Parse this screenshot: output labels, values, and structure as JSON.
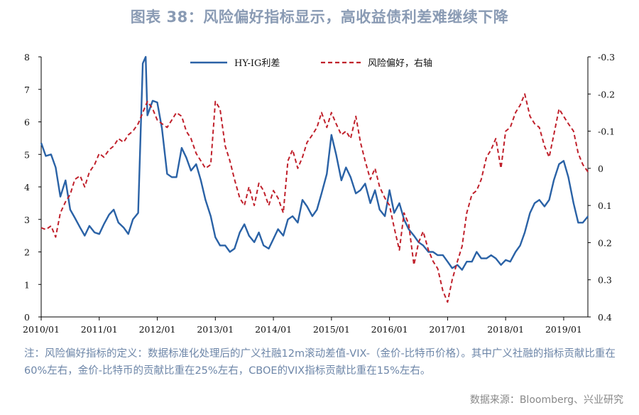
{
  "title": "图表 38：风险偏好指标显示，高收益债利差难继续下降",
  "note": "注：风险偏好指标的定义：数据标准化处理后的广义社融12m滚动差值-VIX-（金价-比特币价格）。其中广义社融的指标贡献比重在60%左右，金价-比特币的贡献比重在25%左右，CBOE的VIX指标贡献比重在15%左右。",
  "source": "数据来源：Bloomberg、兴业研究",
  "colors": {
    "hy_ig": "#2a62a6",
    "risk": "#c0202b"
  },
  "chart_data": {
    "type": "line",
    "x_ticks": [
      "2010/01",
      "2011/01",
      "2012/01",
      "2013/01",
      "2014/01",
      "2015/01",
      "2016/01",
      "2017/01",
      "2018/01",
      "2019/01"
    ],
    "xlim": [
      "2010/01",
      "2019/06"
    ],
    "left_axis": {
      "ylim": [
        0,
        8
      ],
      "ticks": [
        "0",
        "1",
        "2",
        "3",
        "4",
        "5",
        "6",
        "7",
        "8"
      ]
    },
    "right_axis": {
      "ylim": [
        0.4,
        -0.3
      ],
      "inverted": true,
      "ticks": [
        "-0.3",
        "-0.2",
        "-0.1",
        "0",
        "0.1",
        "0.2",
        "0.3",
        "0.4"
      ]
    },
    "grid": false,
    "legend_position": "top",
    "series": [
      {
        "name": "HY-IG利差",
        "axis": "left",
        "style": "solid",
        "points": [
          [
            2010.0,
            5.35
          ],
          [
            2010.08,
            4.95
          ],
          [
            2010.17,
            5.0
          ],
          [
            2010.25,
            4.6
          ],
          [
            2010.33,
            3.7
          ],
          [
            2010.42,
            4.2
          ],
          [
            2010.5,
            3.3
          ],
          [
            2010.58,
            3.05
          ],
          [
            2010.67,
            2.75
          ],
          [
            2010.75,
            2.5
          ],
          [
            2010.83,
            2.8
          ],
          [
            2010.92,
            2.6
          ],
          [
            2011.0,
            2.55
          ],
          [
            2011.08,
            2.85
          ],
          [
            2011.17,
            3.15
          ],
          [
            2011.25,
            3.3
          ],
          [
            2011.33,
            2.9
          ],
          [
            2011.42,
            2.75
          ],
          [
            2011.5,
            2.55
          ],
          [
            2011.58,
            3.0
          ],
          [
            2011.67,
            3.2
          ],
          [
            2011.75,
            7.8
          ],
          [
            2011.8,
            8.0
          ],
          [
            2011.83,
            6.2
          ],
          [
            2011.92,
            6.65
          ],
          [
            2012.0,
            6.6
          ],
          [
            2012.08,
            5.8
          ],
          [
            2012.17,
            4.4
          ],
          [
            2012.25,
            4.3
          ],
          [
            2012.33,
            4.3
          ],
          [
            2012.42,
            5.2
          ],
          [
            2012.5,
            4.9
          ],
          [
            2012.58,
            4.5
          ],
          [
            2012.67,
            4.7
          ],
          [
            2012.75,
            4.2
          ],
          [
            2012.83,
            3.6
          ],
          [
            2012.92,
            3.1
          ],
          [
            2013.0,
            2.45
          ],
          [
            2013.08,
            2.2
          ],
          [
            2013.17,
            2.2
          ],
          [
            2013.25,
            2.0
          ],
          [
            2013.33,
            2.1
          ],
          [
            2013.42,
            2.6
          ],
          [
            2013.5,
            2.85
          ],
          [
            2013.58,
            2.5
          ],
          [
            2013.67,
            2.3
          ],
          [
            2013.75,
            2.6
          ],
          [
            2013.83,
            2.2
          ],
          [
            2013.92,
            2.1
          ],
          [
            2014.0,
            2.4
          ],
          [
            2014.08,
            2.7
          ],
          [
            2014.17,
            2.5
          ],
          [
            2014.25,
            3.0
          ],
          [
            2014.33,
            3.1
          ],
          [
            2014.42,
            2.9
          ],
          [
            2014.5,
            3.6
          ],
          [
            2014.58,
            3.4
          ],
          [
            2014.67,
            3.1
          ],
          [
            2014.75,
            3.3
          ],
          [
            2014.83,
            3.8
          ],
          [
            2014.92,
            4.4
          ],
          [
            2015.0,
            5.6
          ],
          [
            2015.08,
            5.0
          ],
          [
            2015.17,
            4.2
          ],
          [
            2015.25,
            4.6
          ],
          [
            2015.33,
            4.3
          ],
          [
            2015.42,
            3.8
          ],
          [
            2015.5,
            3.9
          ],
          [
            2015.58,
            4.1
          ],
          [
            2015.67,
            3.5
          ],
          [
            2015.75,
            3.9
          ],
          [
            2015.83,
            3.3
          ],
          [
            2015.92,
            3.1
          ],
          [
            2016.0,
            3.9
          ],
          [
            2016.08,
            3.2
          ],
          [
            2016.17,
            3.5
          ],
          [
            2016.25,
            3.0
          ],
          [
            2016.33,
            2.7
          ],
          [
            2016.42,
            2.5
          ],
          [
            2016.5,
            2.3
          ],
          [
            2016.58,
            2.2
          ],
          [
            2016.67,
            2.0
          ],
          [
            2016.75,
            2.0
          ],
          [
            2016.83,
            1.9
          ],
          [
            2016.92,
            1.9
          ],
          [
            2017.0,
            1.7
          ],
          [
            2017.08,
            1.5
          ],
          [
            2017.17,
            1.6
          ],
          [
            2017.25,
            1.45
          ],
          [
            2017.33,
            1.7
          ],
          [
            2017.42,
            1.7
          ],
          [
            2017.5,
            2.0
          ],
          [
            2017.58,
            1.8
          ],
          [
            2017.67,
            1.8
          ],
          [
            2017.75,
            1.9
          ],
          [
            2017.83,
            1.8
          ],
          [
            2017.92,
            1.6
          ],
          [
            2018.0,
            1.75
          ],
          [
            2018.08,
            1.7
          ],
          [
            2018.17,
            2.0
          ],
          [
            2018.25,
            2.2
          ],
          [
            2018.33,
            2.6
          ],
          [
            2018.42,
            3.2
          ],
          [
            2018.5,
            3.5
          ],
          [
            2018.58,
            3.6
          ],
          [
            2018.67,
            3.4
          ],
          [
            2018.75,
            3.6
          ],
          [
            2018.83,
            4.2
          ],
          [
            2018.92,
            4.7
          ],
          [
            2019.0,
            4.8
          ],
          [
            2019.08,
            4.3
          ],
          [
            2019.17,
            3.5
          ],
          [
            2019.25,
            2.9
          ],
          [
            2019.33,
            2.9
          ],
          [
            2019.42,
            3.1
          ]
        ]
      },
      {
        "name": "风险偏好，右轴",
        "axis": "right",
        "style": "dashed",
        "points": [
          [
            2010.0,
            0.16
          ],
          [
            2010.08,
            0.165
          ],
          [
            2010.17,
            0.155
          ],
          [
            2010.25,
            0.185
          ],
          [
            2010.33,
            0.12
          ],
          [
            2010.42,
            0.09
          ],
          [
            2010.5,
            0.07
          ],
          [
            2010.58,
            0.03
          ],
          [
            2010.67,
            0.02
          ],
          [
            2010.75,
            0.05
          ],
          [
            2010.83,
            0.01
          ],
          [
            2010.92,
            -0.01
          ],
          [
            2011.0,
            -0.04
          ],
          [
            2011.08,
            -0.03
          ],
          [
            2011.17,
            -0.05
          ],
          [
            2011.25,
            -0.06
          ],
          [
            2011.33,
            -0.08
          ],
          [
            2011.42,
            -0.07
          ],
          [
            2011.5,
            -0.09
          ],
          [
            2011.58,
            -0.1
          ],
          [
            2011.67,
            -0.12
          ],
          [
            2011.75,
            -0.15
          ],
          [
            2011.83,
            -0.18
          ],
          [
            2011.92,
            -0.16
          ],
          [
            2012.0,
            -0.13
          ],
          [
            2012.08,
            -0.12
          ],
          [
            2012.17,
            -0.11
          ],
          [
            2012.25,
            -0.13
          ],
          [
            2012.33,
            -0.15
          ],
          [
            2012.42,
            -0.14
          ],
          [
            2012.5,
            -0.1
          ],
          [
            2012.58,
            -0.08
          ],
          [
            2012.67,
            -0.04
          ],
          [
            2012.75,
            -0.02
          ],
          [
            2012.83,
            0.0
          ],
          [
            2012.92,
            -0.01
          ],
          [
            2013.0,
            -0.18
          ],
          [
            2013.08,
            -0.16
          ],
          [
            2013.17,
            -0.06
          ],
          [
            2013.25,
            -0.02
          ],
          [
            2013.33,
            0.03
          ],
          [
            2013.42,
            0.08
          ],
          [
            2013.5,
            0.1
          ],
          [
            2013.58,
            0.05
          ],
          [
            2013.67,
            0.1
          ],
          [
            2013.75,
            0.04
          ],
          [
            2013.83,
            0.06
          ],
          [
            2013.92,
            0.1
          ],
          [
            2014.0,
            0.06
          ],
          [
            2014.08,
            0.08
          ],
          [
            2014.17,
            0.12
          ],
          [
            2014.25,
            -0.02
          ],
          [
            2014.33,
            -0.05
          ],
          [
            2014.42,
            0.0
          ],
          [
            2014.5,
            -0.03
          ],
          [
            2014.58,
            -0.07
          ],
          [
            2014.67,
            -0.09
          ],
          [
            2014.75,
            -0.11
          ],
          [
            2014.83,
            -0.15
          ],
          [
            2014.92,
            -0.11
          ],
          [
            2015.0,
            -0.15
          ],
          [
            2015.08,
            -0.12
          ],
          [
            2015.17,
            -0.09
          ],
          [
            2015.25,
            -0.1
          ],
          [
            2015.33,
            -0.08
          ],
          [
            2015.42,
            -0.14
          ],
          [
            2015.5,
            -0.07
          ],
          [
            2015.58,
            -0.02
          ],
          [
            2015.67,
            0.03
          ],
          [
            2015.75,
            0.0
          ],
          [
            2015.83,
            0.05
          ],
          [
            2015.92,
            0.08
          ],
          [
            2016.0,
            0.1
          ],
          [
            2016.08,
            0.16
          ],
          [
            2016.17,
            0.22
          ],
          [
            2016.25,
            0.12
          ],
          [
            2016.33,
            0.15
          ],
          [
            2016.42,
            0.26
          ],
          [
            2016.5,
            0.2
          ],
          [
            2016.58,
            0.17
          ],
          [
            2016.67,
            0.22
          ],
          [
            2016.75,
            0.25
          ],
          [
            2016.83,
            0.27
          ],
          [
            2016.92,
            0.33
          ],
          [
            2017.0,
            0.36
          ],
          [
            2017.08,
            0.3
          ],
          [
            2017.17,
            0.25
          ],
          [
            2017.25,
            0.21
          ],
          [
            2017.33,
            0.12
          ],
          [
            2017.42,
            0.07
          ],
          [
            2017.5,
            0.06
          ],
          [
            2017.58,
            0.03
          ],
          [
            2017.67,
            -0.03
          ],
          [
            2017.75,
            -0.05
          ],
          [
            2017.83,
            -0.08
          ],
          [
            2017.92,
            0.0
          ],
          [
            2018.0,
            -0.1
          ],
          [
            2018.08,
            -0.11
          ],
          [
            2018.17,
            -0.15
          ],
          [
            2018.25,
            -0.17
          ],
          [
            2018.33,
            -0.2
          ],
          [
            2018.42,
            -0.14
          ],
          [
            2018.5,
            -0.12
          ],
          [
            2018.58,
            -0.11
          ],
          [
            2018.67,
            -0.06
          ],
          [
            2018.75,
            -0.03
          ],
          [
            2018.83,
            -0.09
          ],
          [
            2018.92,
            -0.16
          ],
          [
            2019.0,
            -0.14
          ],
          [
            2019.08,
            -0.12
          ],
          [
            2019.17,
            -0.1
          ],
          [
            2019.25,
            -0.04
          ],
          [
            2019.33,
            -0.01
          ],
          [
            2019.42,
            0.01
          ]
        ]
      }
    ]
  }
}
